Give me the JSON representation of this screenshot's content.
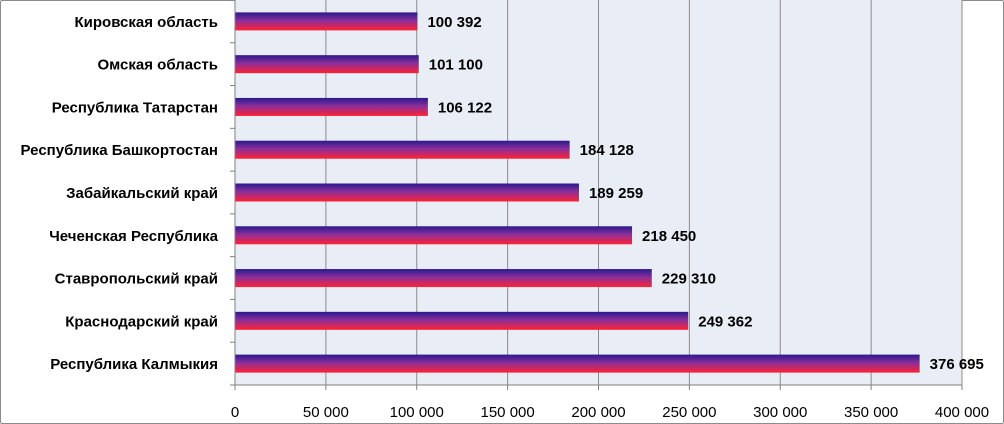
{
  "chart_data": {
    "type": "bar",
    "orientation": "horizontal",
    "categories": [
      "Республика Калмыкия",
      "Краснодарский край",
      "Ставропольский край",
      "Чеченская Республика",
      "Забайкальский край",
      "Республика Башкортостан",
      "Республика Татарстан",
      "Омская область",
      "Кировская область"
    ],
    "values": [
      376695,
      249362,
      229310,
      218450,
      189259,
      184128,
      106122,
      101100,
      100392
    ],
    "value_labels": [
      "376 695",
      "249 362",
      "229 310",
      "218 450",
      "189 259",
      "184 128",
      "106 122",
      "101 100",
      "100 392"
    ],
    "xlim": [
      0,
      400000
    ],
    "xticks": [
      0,
      50000,
      100000,
      150000,
      200000,
      250000,
      300000,
      350000,
      400000
    ],
    "xtick_labels": [
      "0",
      "50 000",
      "100 000",
      "150 000",
      "200 000",
      "250 000",
      "300 000",
      "350 000",
      "400 000"
    ],
    "title": "",
    "xlabel": "",
    "ylabel": "",
    "grid": "vertical",
    "legend": "none",
    "colors": {
      "plot_background": "#e9edf5",
      "gridline": "#8c8c8c",
      "bar_top": "#2a1a8c",
      "bar_mid": "#8a2f9c",
      "bar_bottom": "#ff2233"
    }
  }
}
